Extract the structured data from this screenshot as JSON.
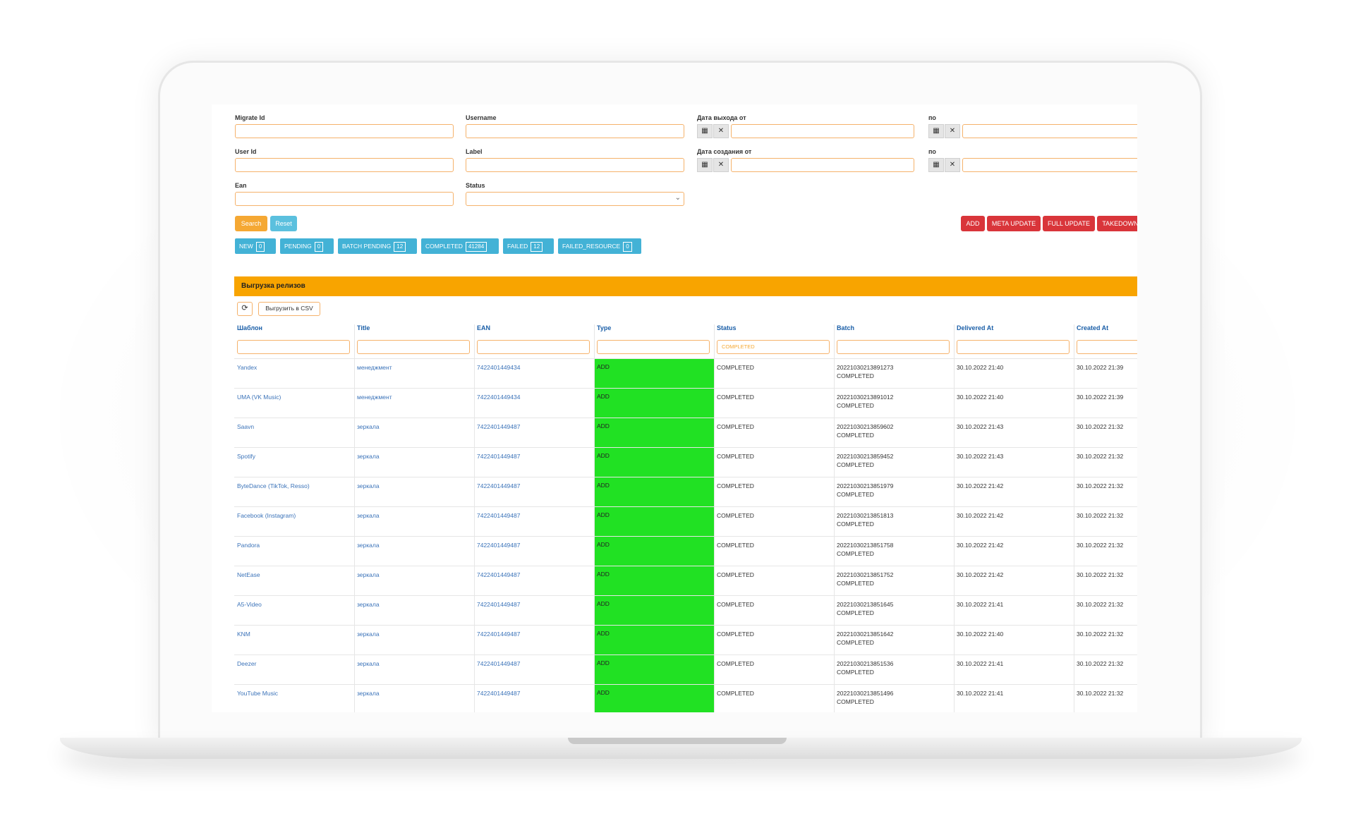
{
  "filters": {
    "migrate_id_label": "Migrate Id",
    "username_label": "Username",
    "release_date_from_label": "Дата выхода от",
    "release_date_to_label": "по",
    "user_id_label": "User Id",
    "label_label": "Label",
    "created_from_label": "Дата создания от",
    "created_to_label": "по",
    "ean_label": "Ean",
    "status_label": "Status"
  },
  "buttons": {
    "search": "Search",
    "reset": "Reset",
    "add": "ADD",
    "meta_update": "META UPDATE",
    "full_update": "FULL UPDATE",
    "takedown": "TAKEDOWN"
  },
  "status_tabs": [
    {
      "label": "NEW",
      "count": "0"
    },
    {
      "label": "PENDING",
      "count": "0"
    },
    {
      "label": "BATCH PENDING",
      "count": "12"
    },
    {
      "label": "COMPLETED",
      "count": "41284"
    },
    {
      "label": "FAILED",
      "count": "12"
    },
    {
      "label": "FAILED_RESOURCE",
      "count": "0"
    }
  ],
  "panel": {
    "title": "Выгрузка релизов",
    "export_csv": "Выгрузить в CSV",
    "refresh_icon": "refresh-icon"
  },
  "table": {
    "columns": [
      "Шаблон",
      "Title",
      "EAN",
      "Type",
      "Status",
      "Batch",
      "Delivered At",
      "Created At"
    ],
    "status_filter_value": "COMPLETED",
    "type_color": "#21e123",
    "rows": [
      {
        "template": "Yandex",
        "title": "менеджмент",
        "ean": "7422401449434",
        "type": "ADD",
        "status": "COMPLETED",
        "batch": "20221030213891273",
        "batch_status": "COMPLETED",
        "delivered": "30.10.2022 21:40",
        "created": "30.10.2022 21:39"
      },
      {
        "template": "UMA (VK Music)",
        "title": "менеджмент",
        "ean": "7422401449434",
        "type": "ADD",
        "status": "COMPLETED",
        "batch": "20221030213891012",
        "batch_status": "COMPLETED",
        "delivered": "30.10.2022 21:40",
        "created": "30.10.2022 21:39"
      },
      {
        "template": "Saavn",
        "title": "зеркала",
        "ean": "7422401449487",
        "type": "ADD",
        "status": "COMPLETED",
        "batch": "20221030213859602",
        "batch_status": "COMPLETED",
        "delivered": "30.10.2022 21:43",
        "created": "30.10.2022 21:32"
      },
      {
        "template": "Spotify",
        "title": "зеркала",
        "ean": "7422401449487",
        "type": "ADD",
        "status": "COMPLETED",
        "batch": "20221030213859452",
        "batch_status": "COMPLETED",
        "delivered": "30.10.2022 21:43",
        "created": "30.10.2022 21:32"
      },
      {
        "template": "ByteDance (TikTok, Resso)",
        "title": "зеркала",
        "ean": "7422401449487",
        "type": "ADD",
        "status": "COMPLETED",
        "batch": "20221030213851979",
        "batch_status": "COMPLETED",
        "delivered": "30.10.2022 21:42",
        "created": "30.10.2022 21:32"
      },
      {
        "template": "Facebook (Instagram)",
        "title": "зеркала",
        "ean": "7422401449487",
        "type": "ADD",
        "status": "COMPLETED",
        "batch": "20221030213851813",
        "batch_status": "COMPLETED",
        "delivered": "30.10.2022 21:42",
        "created": "30.10.2022 21:32"
      },
      {
        "template": "Pandora",
        "title": "зеркала",
        "ean": "7422401449487",
        "type": "ADD",
        "status": "COMPLETED",
        "batch": "20221030213851758",
        "batch_status": "COMPLETED",
        "delivered": "30.10.2022 21:42",
        "created": "30.10.2022 21:32"
      },
      {
        "template": "NetEase",
        "title": "зеркала",
        "ean": "7422401449487",
        "type": "ADD",
        "status": "COMPLETED",
        "batch": "20221030213851752",
        "batch_status": "COMPLETED",
        "delivered": "30.10.2022 21:42",
        "created": "30.10.2022 21:32"
      },
      {
        "template": "A5-Video",
        "title": "зеркала",
        "ean": "7422401449487",
        "type": "ADD",
        "status": "COMPLETED",
        "batch": "20221030213851645",
        "batch_status": "COMPLETED",
        "delivered": "30.10.2022 21:41",
        "created": "30.10.2022 21:32"
      },
      {
        "template": "KNM",
        "title": "зеркала",
        "ean": "7422401449487",
        "type": "ADD",
        "status": "COMPLETED",
        "batch": "20221030213851642",
        "batch_status": "COMPLETED",
        "delivered": "30.10.2022 21:40",
        "created": "30.10.2022 21:32"
      },
      {
        "template": "Deezer",
        "title": "зеркала",
        "ean": "7422401449487",
        "type": "ADD",
        "status": "COMPLETED",
        "batch": "20221030213851536",
        "batch_status": "COMPLETED",
        "delivered": "30.10.2022 21:41",
        "created": "30.10.2022 21:32"
      },
      {
        "template": "YouTube Music",
        "title": "зеркала",
        "ean": "7422401449487",
        "type": "ADD",
        "status": "COMPLETED",
        "batch": "20221030213851496",
        "batch_status": "COMPLETED",
        "delivered": "30.10.2022 21:41",
        "created": "30.10.2022 21:32"
      }
    ]
  }
}
